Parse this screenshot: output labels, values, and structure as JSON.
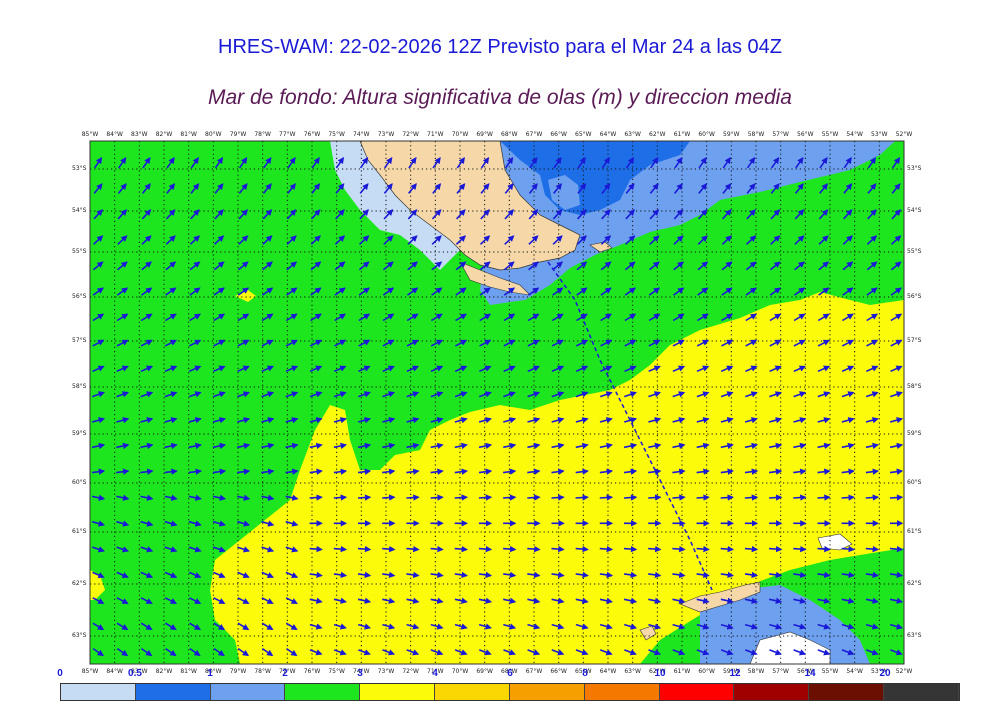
{
  "header": {
    "title": "HRES-WAM: 22-02-2026 12Z Previsto para el Mar 24 a las 04Z",
    "subtitle": "Mar de fondo: Altura significativa de olas (m) y direccion media"
  },
  "map": {
    "lon_labels": [
      "85°W",
      "84°W",
      "83°W",
      "82°W",
      "81°W",
      "80°W",
      "79°W",
      "78°W",
      "77°W",
      "76°W",
      "75°W",
      "74°W",
      "73°W",
      "72°W",
      "71°W",
      "70°W",
      "69°W",
      "68°W",
      "67°W",
      "66°W",
      "65°W",
      "64°W",
      "63°W",
      "62°W",
      "61°W",
      "60°W",
      "59°W",
      "58°W",
      "57°W",
      "56°W",
      "55°W",
      "54°W",
      "53°W",
      "52°W"
    ],
    "lat_labels": [
      "53°S",
      "54°S",
      "55°S",
      "56°S",
      "57°S",
      "58°S",
      "59°S",
      "60°S",
      "61°S",
      "62°S",
      "63°S"
    ],
    "arrow_color": "#1a1ad6",
    "land_color": "#f5d7a8"
  },
  "colorbar": {
    "tick_labels": [
      "0",
      "0.5",
      "1",
      "2",
      "3",
      "4",
      "6",
      "8",
      "10",
      "12",
      "14",
      "20"
    ],
    "colors": [
      "#c6dcf5",
      "#1e6ee8",
      "#6ea0f0",
      "#1ee61e",
      "#fbfb0a",
      "#fad700",
      "#f5a000",
      "#f57800",
      "#ff0000",
      "#a00000",
      "#6b0f00",
      "#353535"
    ]
  }
}
